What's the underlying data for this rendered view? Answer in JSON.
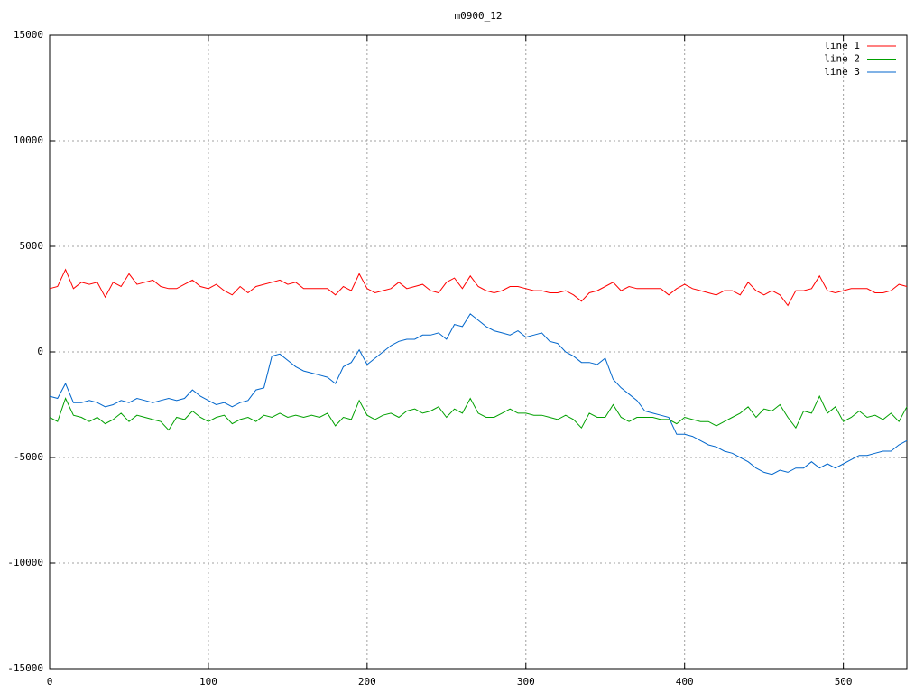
{
  "chart_data": {
    "type": "line",
    "title": "m0900_12",
    "x": [
      0,
      5,
      10,
      15,
      20,
      25,
      30,
      35,
      40,
      45,
      50,
      55,
      60,
      65,
      70,
      75,
      80,
      85,
      90,
      95,
      100,
      105,
      110,
      115,
      120,
      125,
      130,
      135,
      140,
      145,
      150,
      155,
      160,
      165,
      170,
      175,
      180,
      185,
      190,
      195,
      200,
      205,
      210,
      215,
      220,
      225,
      230,
      235,
      240,
      245,
      250,
      255,
      260,
      265,
      270,
      275,
      280,
      285,
      290,
      295,
      300,
      305,
      310,
      315,
      320,
      325,
      330,
      335,
      340,
      345,
      350,
      355,
      360,
      365,
      370,
      375,
      380,
      385,
      390,
      395,
      400,
      405,
      410,
      415,
      420,
      425,
      430,
      435,
      440,
      445,
      450,
      455,
      460,
      465,
      470,
      475,
      480,
      485,
      490,
      495,
      500,
      505,
      510,
      515,
      520,
      525,
      530,
      535,
      540
    ],
    "series": [
      {
        "name": "line 1",
        "color": "#ff0000",
        "values": [
          3000,
          3100,
          3900,
          3000,
          3300,
          3200,
          3300,
          2600,
          3300,
          3100,
          3700,
          3200,
          3300,
          3400,
          3100,
          3000,
          3000,
          3200,
          3400,
          3100,
          3000,
          3200,
          2900,
          2700,
          3100,
          2800,
          3100,
          3200,
          3300,
          3400,
          3200,
          3300,
          3000,
          3000,
          3000,
          3000,
          2700,
          3100,
          2900,
          3700,
          3000,
          2800,
          2900,
          3000,
          3300,
          3000,
          3100,
          3200,
          2900,
          2800,
          3300,
          3500,
          3000,
          3600,
          3100,
          2900,
          2800,
          2900,
          3100,
          3100,
          3000,
          2900,
          2900,
          2800,
          2800,
          2900,
          2700,
          2400,
          2800,
          2900,
          3100,
          3300,
          2900,
          3100,
          3000,
          3000,
          3000,
          3000,
          2700,
          3000,
          3200,
          3000,
          2900,
          2800,
          2700,
          2900,
          2900,
          2700,
          3300,
          2900,
          2700,
          2900,
          2700,
          2200,
          2900,
          2900,
          3000,
          3600,
          2900,
          2800,
          2900,
          3000,
          3000,
          3000,
          2800,
          2800,
          2900,
          3200,
          3100
        ]
      },
      {
        "name": "line 2",
        "color": "#00a000",
        "values": [
          -3100,
          -3300,
          -2200,
          -3000,
          -3100,
          -3300,
          -3100,
          -3400,
          -3200,
          -2900,
          -3300,
          -3000,
          -3100,
          -3200,
          -3300,
          -3700,
          -3100,
          -3200,
          -2800,
          -3100,
          -3300,
          -3100,
          -3000,
          -3400,
          -3200,
          -3100,
          -3300,
          -3000,
          -3100,
          -2900,
          -3100,
          -3000,
          -3100,
          -3000,
          -3100,
          -2900,
          -3500,
          -3100,
          -3200,
          -2300,
          -3000,
          -3200,
          -3000,
          -2900,
          -3100,
          -2800,
          -2700,
          -2900,
          -2800,
          -2600,
          -3100,
          -2700,
          -2900,
          -2200,
          -2900,
          -3100,
          -3100,
          -2900,
          -2700,
          -2900,
          -2900,
          -3000,
          -3000,
          -3100,
          -3200,
          -3000,
          -3200,
          -3600,
          -2900,
          -3100,
          -3100,
          -2500,
          -3100,
          -3300,
          -3100,
          -3100,
          -3100,
          -3200,
          -3200,
          -3400,
          -3100,
          -3200,
          -3300,
          -3300,
          -3500,
          -3300,
          -3100,
          -2900,
          -2600,
          -3100,
          -2700,
          -2800,
          -2500,
          -3100,
          -3600,
          -2800,
          -2900,
          -2100,
          -2900,
          -2600,
          -3300,
          -3100,
          -2800,
          -3100,
          -3000,
          -3200,
          -2900,
          -3300,
          -2600
        ]
      },
      {
        "name": "line 3",
        "color": "#0066cc",
        "values": [
          -2100,
          -2200,
          -1500,
          -2400,
          -2400,
          -2300,
          -2400,
          -2600,
          -2500,
          -2300,
          -2400,
          -2200,
          -2300,
          -2400,
          -2300,
          -2200,
          -2300,
          -2200,
          -1800,
          -2100,
          -2300,
          -2500,
          -2400,
          -2600,
          -2400,
          -2300,
          -1800,
          -1700,
          -200,
          -100,
          -400,
          -700,
          -900,
          -1000,
          -1100,
          -1200,
          -1500,
          -700,
          -500,
          100,
          -600,
          -300,
          0,
          300,
          500,
          600,
          600,
          800,
          800,
          900,
          600,
          1300,
          1200,
          1800,
          1500,
          1200,
          1000,
          900,
          800,
          1000,
          700,
          800,
          900,
          500,
          400,
          0,
          -200,
          -500,
          -500,
          -600,
          -300,
          -1300,
          -1700,
          -2000,
          -2300,
          -2800,
          -2900,
          -3000,
          -3100,
          -3900,
          -3900,
          -4000,
          -4200,
          -4400,
          -4500,
          -4700,
          -4800,
          -5000,
          -5200,
          -5500,
          -5700,
          -5800,
          -5600,
          -5700,
          -5500,
          -5500,
          -5200,
          -5500,
          -5300,
          -5500,
          -5300,
          -5100,
          -4900,
          -4900,
          -4800,
          -4700,
          -4700,
          -4400,
          -4200
        ]
      }
    ],
    "xlim": [
      0,
      540
    ],
    "ylim": [
      -15000,
      15000
    ],
    "xticks": [
      0,
      100,
      200,
      300,
      400,
      500
    ],
    "yticks": [
      -15000,
      -10000,
      -5000,
      0,
      5000,
      10000,
      15000
    ],
    "grid": true,
    "legend": "top-right"
  }
}
